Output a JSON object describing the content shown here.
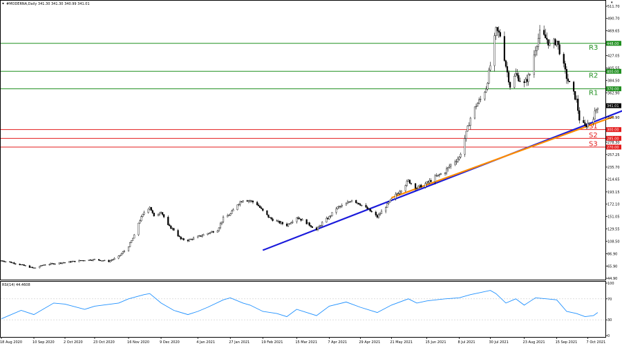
{
  "window": {
    "title": "#MODERNA,Daily  341.30 341.30 340.99 341.01",
    "rsi_label": "RSI(14) 44.4608"
  },
  "chart_data": [
    {
      "type": "candlestick",
      "symbol": "#MODERNA",
      "timeframe": "Daily",
      "ohlc_readout": {
        "open": 341.3,
        "high": 341.3,
        "low": 340.99,
        "close": 341.01
      },
      "ylim": [
        44.9,
        511.7
      ],
      "y_ticks": [
        "511.70",
        "490.70",
        "469.65",
        "448.10",
        "427.05",
        "405.55",
        "384.50",
        "362.90",
        "341.85",
        "320.90",
        "299.35",
        "278.30",
        "257.25",
        "235.70",
        "214.65",
        "193.15",
        "172.10",
        "151.05",
        "129.55",
        "108.50",
        "86.90",
        "65.90",
        "44.90"
      ],
      "x_ticks": [
        "18 Aug 2020",
        "10 Sep 2020",
        "2 Oct 2020",
        "23 Oct 2020",
        "16 Nov 2020",
        "9 Dec 2020",
        "4 Jan 2021",
        "27 Jan 2021",
        "19 Feb 2021",
        "15 Mar 2021",
        "7 Apr 2021",
        "29 Apr 2021",
        "21 May 2021",
        "15 Jun 2021",
        "8 Jul 2021",
        "30 Jul 2021",
        "23 Aug 2021",
        "15 Sep 2021",
        "7 Oct 2021"
      ],
      "price_path": [
        [
          "18 Aug 2020",
          75
        ],
        [
          "25 Aug 2020",
          72
        ],
        [
          "1 Sep 2020",
          68
        ],
        [
          "10 Sep 2020",
          62
        ],
        [
          "17 Sep 2020",
          68
        ],
        [
          "24 Sep 2020",
          70
        ],
        [
          "2 Oct 2020",
          72
        ],
        [
          "9 Oct 2020",
          74
        ],
        [
          "16 Oct 2020",
          76
        ],
        [
          "23 Oct 2020",
          77
        ],
        [
          "2 Nov 2020",
          74
        ],
        [
          "9 Nov 2020",
          82
        ],
        [
          "13 Nov 2020",
          92
        ],
        [
          "16 Nov 2020",
          100
        ],
        [
          "20 Nov 2020",
          118
        ],
        [
          "23 Nov 2020",
          140
        ],
        [
          "27 Nov 2020",
          158
        ],
        [
          "1 Dec 2020",
          168
        ],
        [
          "4 Dec 2020",
          150
        ],
        [
          "9 Dec 2020",
          160
        ],
        [
          "14 Dec 2020",
          135
        ],
        [
          "18 Dec 2020",
          128
        ],
        [
          "23 Dec 2020",
          112
        ],
        [
          "28 Dec 2020",
          110
        ],
        [
          "4 Jan 2021",
          116
        ],
        [
          "11 Jan 2021",
          122
        ],
        [
          "18 Jan 2021",
          128
        ],
        [
          "22 Jan 2021",
          148
        ],
        [
          "27 Jan 2021",
          155
        ],
        [
          "1 Feb 2021",
          172
        ],
        [
          "5 Feb 2021",
          180
        ],
        [
          "10 Feb 2021",
          178
        ],
        [
          "15 Feb 2021",
          172
        ],
        [
          "19 Feb 2021",
          160
        ],
        [
          "24 Feb 2021",
          148
        ],
        [
          "1 Mar 2021",
          142
        ],
        [
          "8 Mar 2021",
          136
        ],
        [
          "15 Mar 2021",
          150
        ],
        [
          "22 Mar 2021",
          140
        ],
        [
          "29 Mar 2021",
          128
        ],
        [
          "2 Apr 2021",
          140
        ],
        [
          "7 Apr 2021",
          150
        ],
        [
          "12 Apr 2021",
          165
        ],
        [
          "19 Apr 2021",
          172
        ],
        [
          "23 Apr 2021",
          180
        ],
        [
          "29 Apr 2021",
          172
        ],
        [
          "5 May 2021",
          162
        ],
        [
          "11 May 2021",
          150
        ],
        [
          "17 May 2021",
          168
        ],
        [
          "21 May 2021",
          180
        ],
        [
          "27 May 2021",
          195
        ],
        [
          "2 Jun 2021",
          212
        ],
        [
          "8 Jun 2021",
          200
        ],
        [
          "15 Jun 2021",
          208
        ],
        [
          "21 Jun 2021",
          218
        ],
        [
          "28 Jun 2021",
          228
        ],
        [
          "2 Jul 2021",
          240
        ],
        [
          "8 Jul 2021",
          252
        ],
        [
          "12 Jul 2021",
          285
        ],
        [
          "16 Jul 2021",
          320
        ],
        [
          "20 Jul 2021",
          342
        ],
        [
          "23 Jul 2021",
          352
        ],
        [
          "27 Jul 2021",
          372
        ],
        [
          "30 Jul 2021",
          410
        ],
        [
          "3 Aug 2021",
          470
        ],
        [
          "6 Aug 2021",
          462
        ],
        [
          "10 Aug 2021",
          410
        ],
        [
          "13 Aug 2021",
          375
        ],
        [
          "17 Aug 2021",
          395
        ],
        [
          "20 Aug 2021",
          385
        ],
        [
          "23 Aug 2021",
          378
        ],
        [
          "27 Aug 2021",
          395
        ],
        [
          "31 Aug 2021",
          440
        ],
        [
          "3 Sep 2021",
          465
        ],
        [
          "8 Sep 2021",
          455
        ],
        [
          "10 Sep 2021",
          445
        ],
        [
          "15 Sep 2021",
          452
        ],
        [
          "17 Sep 2021",
          435
        ],
        [
          "22 Sep 2021",
          390
        ],
        [
          "24 Sep 2021",
          378
        ],
        [
          "29 Sep 2021",
          350
        ],
        [
          "1 Oct 2021",
          318
        ],
        [
          "5 Oct 2021",
          305
        ],
        [
          "7 Oct 2021",
          310
        ],
        [
          "11 Oct 2021",
          322
        ],
        [
          "14 Oct 2021",
          341
        ]
      ],
      "levels": [
        {
          "label": "R3",
          "value": 448.0,
          "badge": "448.00",
          "color": "#1f8f1f"
        },
        {
          "label": "R2",
          "value": 400.0,
          "badge": "400.00",
          "color": "#1f8f1f"
        },
        {
          "label": "R1",
          "value": 370.0,
          "badge": "370.00",
          "color": "#1f8f1f"
        },
        {
          "label": "S1",
          "value": 300.0,
          "badge": "300.00",
          "color": "#e31b1b"
        },
        {
          "label": "S2",
          "value": 285.0,
          "badge": "285.00",
          "color": "#e31b1b"
        },
        {
          "label": "S3",
          "value": 270.0,
          "badge": "270.00",
          "color": "#e31b1b"
        }
      ],
      "current_price_badge": "341.01",
      "trendlines": [
        {
          "color": "#1a1adb",
          "from": [
            "19 Feb 2021",
            93
          ],
          "to": [
            "14 Nov 2021",
            345
          ]
        },
        {
          "color": "#ff8c00",
          "from": [
            "21 May 2021",
            183
          ],
          "to": [
            "25 Oct 2021",
            322
          ]
        }
      ],
      "colors": {
        "grid_text": "#000000",
        "bar": "#000000"
      }
    },
    {
      "type": "line",
      "name": "RSI(14) 44.4608",
      "ylim": [
        0,
        100
      ],
      "y_ticks": [
        "100",
        "70",
        "30",
        "0"
      ],
      "x": [
        "18 Aug 2020",
        "1 Sep 2020",
        "10 Sep 2020",
        "24 Sep 2020",
        "2 Oct 2020",
        "16 Oct 2020",
        "23 Oct 2020",
        "9 Nov 2020",
        "16 Nov 2020",
        "27 Nov 2020",
        "1 Dec 2020",
        "9 Dec 2020",
        "18 Dec 2020",
        "28 Dec 2020",
        "4 Jan 2021",
        "11 Jan 2021",
        "22 Jan 2021",
        "27 Jan 2021",
        "5 Feb 2021",
        "10 Feb 2021",
        "19 Feb 2021",
        "1 Mar 2021",
        "8 Mar 2021",
        "15 Mar 2021",
        "22 Mar 2021",
        "29 Mar 2021",
        "7 Apr 2021",
        "19 Apr 2021",
        "29 Apr 2021",
        "11 May 2021",
        "21 May 2021",
        "2 Jun 2021",
        "8 Jun 2021",
        "15 Jun 2021",
        "28 Jun 2021",
        "8 Jul 2021",
        "16 Jul 2021",
        "23 Jul 2021",
        "30 Jul 2021",
        "3 Aug 2021",
        "10 Aug 2021",
        "17 Aug 2021",
        "23 Aug 2021",
        "31 Aug 2021",
        "8 Sep 2021",
        "15 Sep 2021",
        "22 Sep 2021",
        "29 Sep 2021",
        "5 Oct 2021",
        "11 Oct 2021",
        "14 Oct 2021"
      ],
      "values": [
        32,
        48,
        40,
        62,
        60,
        50,
        56,
        62,
        70,
        78,
        80,
        62,
        48,
        40,
        46,
        54,
        68,
        72,
        62,
        58,
        46,
        42,
        36,
        50,
        44,
        38,
        56,
        64,
        54,
        44,
        58,
        70,
        62,
        66,
        70,
        72,
        78,
        82,
        86,
        80,
        62,
        70,
        58,
        72,
        70,
        68,
        46,
        42,
        36,
        38,
        44
      ],
      "colors": {
        "line": "#1e90ff"
      }
    }
  ]
}
